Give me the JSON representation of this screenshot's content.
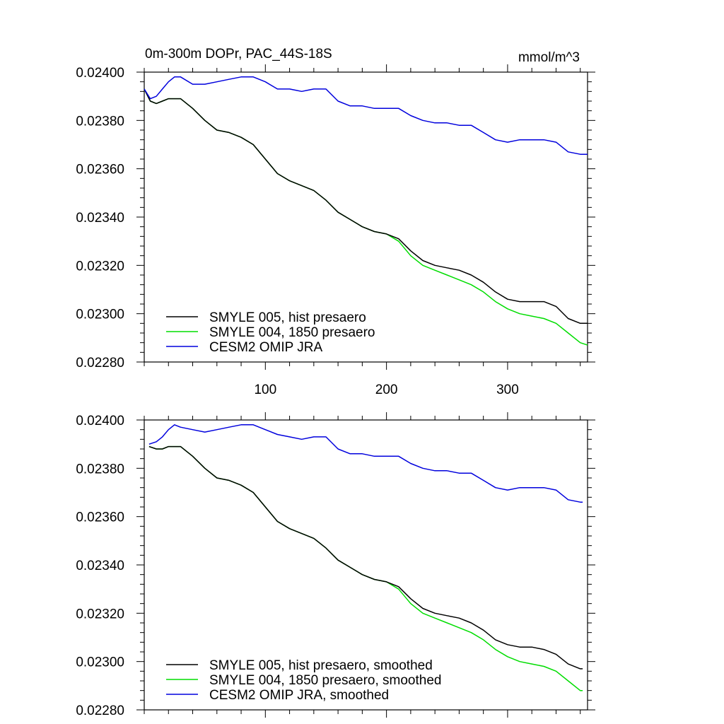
{
  "chart_data": [
    {
      "type": "line",
      "title": "0m-300m DOPr, PAC_44S-18S",
      "units": "mmol/m^3",
      "xlim": [
        0,
        366
      ],
      "ylim": [
        0.0228,
        0.024
      ],
      "yticks": [
        "0.02400",
        "0.02380",
        "0.02360",
        "0.02340",
        "0.02320",
        "0.02300",
        "0.02280"
      ],
      "xticks": [
        "100",
        "200",
        "300"
      ],
      "grid": false,
      "legend_position": "bottom-left",
      "series": [
        {
          "name": "SMYLE 005, hist presaero",
          "color": "#000000",
          "x": [
            0,
            5,
            10,
            15,
            20,
            25,
            30,
            40,
            50,
            60,
            70,
            80,
            90,
            100,
            110,
            120,
            130,
            140,
            150,
            160,
            170,
            180,
            190,
            200,
            210,
            220,
            230,
            240,
            250,
            260,
            270,
            280,
            290,
            300,
            310,
            320,
            330,
            340,
            350,
            360,
            366
          ],
          "y": [
            0.02393,
            0.02388,
            0.02387,
            0.02388,
            0.02389,
            0.02389,
            0.02389,
            0.02385,
            0.0238,
            0.02376,
            0.02375,
            0.02373,
            0.0237,
            0.02364,
            0.02358,
            0.02355,
            0.02353,
            0.02351,
            0.02347,
            0.02342,
            0.02339,
            0.02336,
            0.02334,
            0.02333,
            0.02331,
            0.02326,
            0.02322,
            0.0232,
            0.02319,
            0.02318,
            0.02316,
            0.02313,
            0.02309,
            0.02306,
            0.02305,
            0.02305,
            0.02305,
            0.02303,
            0.02298,
            0.02296,
            0.02296
          ]
        },
        {
          "name": "SMYLE 004, 1850 presaero",
          "color": "#00dd00",
          "x": [
            0,
            5,
            10,
            15,
            20,
            25,
            30,
            40,
            50,
            60,
            70,
            80,
            90,
            100,
            110,
            120,
            130,
            140,
            150,
            160,
            170,
            180,
            190,
            200,
            210,
            220,
            230,
            240,
            250,
            260,
            270,
            280,
            290,
            300,
            310,
            320,
            330,
            340,
            350,
            360,
            366
          ],
          "y": [
            0.02393,
            0.02388,
            0.02387,
            0.02388,
            0.02389,
            0.02389,
            0.02389,
            0.02385,
            0.0238,
            0.02376,
            0.02375,
            0.02373,
            0.0237,
            0.02364,
            0.02358,
            0.02355,
            0.02353,
            0.02351,
            0.02347,
            0.02342,
            0.02339,
            0.02336,
            0.02334,
            0.02333,
            0.0233,
            0.02324,
            0.0232,
            0.02318,
            0.02316,
            0.02314,
            0.02312,
            0.02309,
            0.02305,
            0.02302,
            0.023,
            0.02299,
            0.02298,
            0.02296,
            0.02292,
            0.02288,
            0.02287
          ]
        },
        {
          "name": "CESM2 OMIP JRA",
          "color": "#0000dd",
          "x": [
            0,
            5,
            10,
            15,
            20,
            25,
            30,
            40,
            50,
            60,
            70,
            80,
            90,
            100,
            110,
            120,
            130,
            140,
            150,
            160,
            170,
            180,
            190,
            200,
            210,
            220,
            230,
            240,
            250,
            260,
            270,
            280,
            290,
            300,
            310,
            320,
            330,
            340,
            350,
            360,
            366
          ],
          "y": [
            0.02393,
            0.02389,
            0.0239,
            0.02393,
            0.02396,
            0.02398,
            0.02398,
            0.02395,
            0.02395,
            0.02396,
            0.02397,
            0.02398,
            0.02398,
            0.02396,
            0.02393,
            0.02393,
            0.02392,
            0.02393,
            0.02393,
            0.02388,
            0.02386,
            0.02386,
            0.02385,
            0.02385,
            0.02385,
            0.02382,
            0.0238,
            0.02379,
            0.02379,
            0.02378,
            0.02378,
            0.02375,
            0.02372,
            0.02371,
            0.02372,
            0.02372,
            0.02372,
            0.02371,
            0.02367,
            0.02366,
            0.02366
          ]
        }
      ]
    },
    {
      "type": "line",
      "xlim": [
        0,
        366
      ],
      "ylim": [
        0.0228,
        0.024
      ],
      "yticks": [
        "0.02400",
        "0.02380",
        "0.02360",
        "0.02340",
        "0.02320",
        "0.02300",
        "0.02280"
      ],
      "grid": false,
      "legend_position": "bottom-left",
      "series": [
        {
          "name": "SMYLE 005, hist presaero, smoothed",
          "color": "#000000",
          "x": [
            4,
            10,
            15,
            20,
            25,
            30,
            40,
            50,
            60,
            70,
            80,
            90,
            100,
            110,
            120,
            130,
            140,
            150,
            160,
            170,
            180,
            190,
            200,
            210,
            220,
            230,
            240,
            250,
            260,
            270,
            280,
            290,
            300,
            310,
            320,
            330,
            340,
            350,
            360,
            362
          ],
          "y": [
            0.02389,
            0.02388,
            0.02388,
            0.02389,
            0.02389,
            0.02389,
            0.02385,
            0.0238,
            0.02376,
            0.02375,
            0.02373,
            0.0237,
            0.02364,
            0.02358,
            0.02355,
            0.02353,
            0.02351,
            0.02347,
            0.02342,
            0.02339,
            0.02336,
            0.02334,
            0.02333,
            0.02331,
            0.02326,
            0.02322,
            0.0232,
            0.02319,
            0.02318,
            0.02316,
            0.02313,
            0.02309,
            0.02307,
            0.02306,
            0.02306,
            0.02305,
            0.02303,
            0.02299,
            0.02297,
            0.02297
          ]
        },
        {
          "name": "SMYLE 004, 1850 presaero, smoothed",
          "color": "#00dd00",
          "x": [
            4,
            10,
            15,
            20,
            25,
            30,
            40,
            50,
            60,
            70,
            80,
            90,
            100,
            110,
            120,
            130,
            140,
            150,
            160,
            170,
            180,
            190,
            200,
            210,
            220,
            230,
            240,
            250,
            260,
            270,
            280,
            290,
            300,
            310,
            320,
            330,
            340,
            350,
            360,
            362
          ],
          "y": [
            0.02389,
            0.02388,
            0.02388,
            0.02389,
            0.02389,
            0.02389,
            0.02385,
            0.0238,
            0.02376,
            0.02375,
            0.02373,
            0.0237,
            0.02364,
            0.02358,
            0.02355,
            0.02353,
            0.02351,
            0.02347,
            0.02342,
            0.02339,
            0.02336,
            0.02334,
            0.02333,
            0.0233,
            0.02324,
            0.0232,
            0.02318,
            0.02316,
            0.02314,
            0.02312,
            0.02309,
            0.02305,
            0.02302,
            0.023,
            0.02299,
            0.02298,
            0.02296,
            0.02292,
            0.02288,
            0.02288
          ]
        },
        {
          "name": "CESM2 OMIP JRA, smoothed",
          "color": "#0000dd",
          "x": [
            4,
            10,
            15,
            20,
            25,
            30,
            40,
            50,
            60,
            70,
            80,
            90,
            100,
            110,
            120,
            130,
            140,
            150,
            160,
            170,
            180,
            190,
            200,
            210,
            220,
            230,
            240,
            250,
            260,
            270,
            280,
            290,
            300,
            310,
            320,
            330,
            340,
            350,
            360,
            362
          ],
          "y": [
            0.0239,
            0.02391,
            0.02393,
            0.02396,
            0.02398,
            0.02397,
            0.02396,
            0.02395,
            0.02396,
            0.02397,
            0.02398,
            0.02398,
            0.02396,
            0.02394,
            0.02393,
            0.02392,
            0.02393,
            0.02393,
            0.02388,
            0.02386,
            0.02386,
            0.02385,
            0.02385,
            0.02385,
            0.02382,
            0.0238,
            0.02379,
            0.02379,
            0.02378,
            0.02378,
            0.02375,
            0.02372,
            0.02371,
            0.02372,
            0.02372,
            0.02372,
            0.02371,
            0.02367,
            0.02366,
            0.02366
          ]
        }
      ]
    }
  ]
}
